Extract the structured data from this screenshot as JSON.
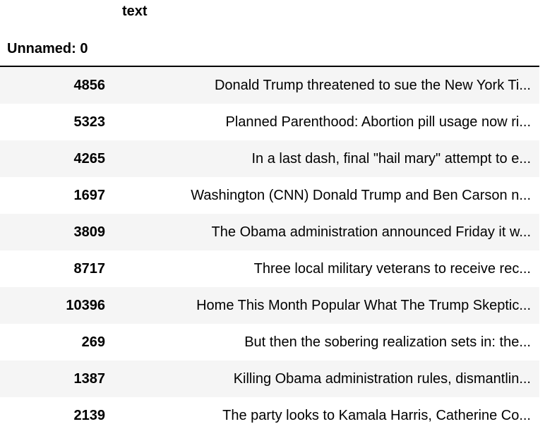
{
  "table": {
    "column_header": "text",
    "index_header": "Unnamed: 0",
    "rows": [
      {
        "index": "4856",
        "text": "Donald Trump threatened to sue the New York Ti..."
      },
      {
        "index": "5323",
        "text": "Planned Parenthood: Abortion pill usage now ri..."
      },
      {
        "index": "4265",
        "text": "In a last dash, final \"hail mary\" attempt to e..."
      },
      {
        "index": "1697",
        "text": "Washington (CNN) Donald Trump and Ben Carson n..."
      },
      {
        "index": "3809",
        "text": "The Obama administration announced Friday it w..."
      },
      {
        "index": "8717",
        "text": "Three local military veterans to receive rec..."
      },
      {
        "index": "10396",
        "text": "Home This Month Popular What The Trump Skeptic..."
      },
      {
        "index": "269",
        "text": "But then the sobering realization sets in: the..."
      },
      {
        "index": "1387",
        "text": "Killing Obama administration rules, dismantlin..."
      },
      {
        "index": "2139",
        "text": "The party looks to Kamala Harris, Catherine Co..."
      }
    ]
  }
}
